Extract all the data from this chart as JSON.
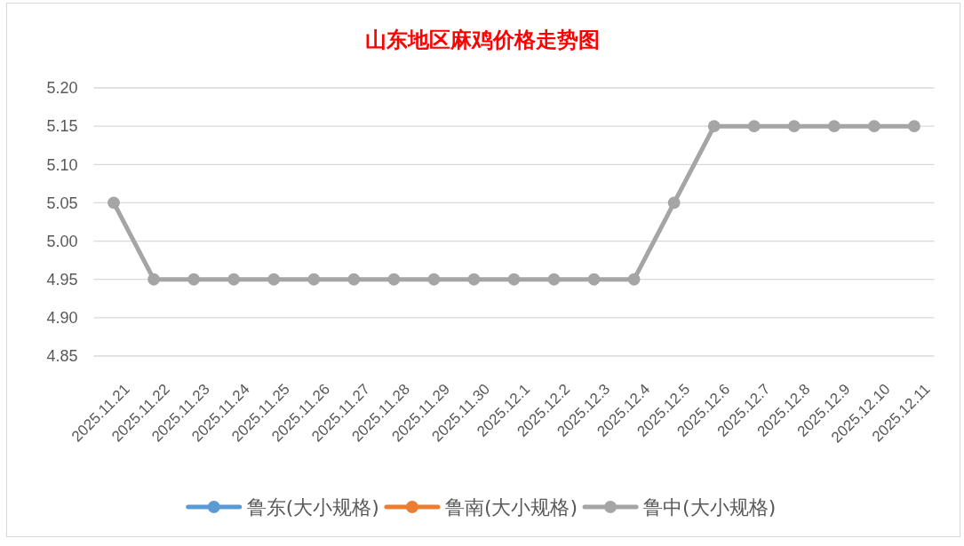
{
  "chart_data": {
    "type": "line",
    "title": "山东地区麻鸡价格走势图",
    "categories": [
      "2025.11.21",
      "2025.11.22",
      "2025.11.23",
      "2025.11.24",
      "2025.11.25",
      "2025.11.26",
      "2025.11.27",
      "2025.11.28",
      "2025.11.29",
      "2025.11.30",
      "2025.12.1",
      "2025.12.2",
      "2025.12.3",
      "2025.12.4",
      "2025.12.5",
      "2025.12.6",
      "2025.12.7",
      "2025.12.8",
      "2025.12.9",
      "2025.12.10",
      "2025.12.11"
    ],
    "series": [
      {
        "name": "鲁东(大小规格)",
        "color": "#5b9bd5",
        "values": [
          null,
          null,
          null,
          null,
          null,
          null,
          null,
          null,
          null,
          null,
          null,
          null,
          null,
          null,
          null,
          null,
          null,
          null,
          null,
          null,
          null
        ]
      },
      {
        "name": "鲁南(大小规格)",
        "color": "#ed7d31",
        "values": [
          null,
          null,
          null,
          null,
          null,
          null,
          null,
          null,
          null,
          null,
          null,
          null,
          null,
          null,
          null,
          null,
          null,
          null,
          null,
          null,
          null
        ]
      },
      {
        "name": "鲁中(大小规格)",
        "color": "#a5a5a5",
        "values": [
          5.05,
          4.95,
          4.95,
          4.95,
          4.95,
          4.95,
          4.95,
          4.95,
          4.95,
          4.95,
          4.95,
          4.95,
          4.95,
          4.95,
          5.05,
          5.15,
          5.15,
          5.15,
          5.15,
          5.15,
          5.15
        ]
      }
    ],
    "ylim": [
      4.85,
      5.2
    ],
    "yticks": [
      {
        "value": 4.85,
        "label": "4.85"
      },
      {
        "value": 4.9,
        "label": "4.90"
      },
      {
        "value": 4.95,
        "label": "4.95"
      },
      {
        "value": 5,
        "label": "5.00"
      },
      {
        "value": 5.05,
        "label": "5.05"
      },
      {
        "value": 5.1,
        "label": "5.10"
      },
      {
        "value": 5.15,
        "label": "5.15"
      },
      {
        "value": 5.2,
        "label": "5.20"
      }
    ],
    "grid": "y",
    "legend": "bottom",
    "marker": "circle",
    "line_style": "solid"
  }
}
